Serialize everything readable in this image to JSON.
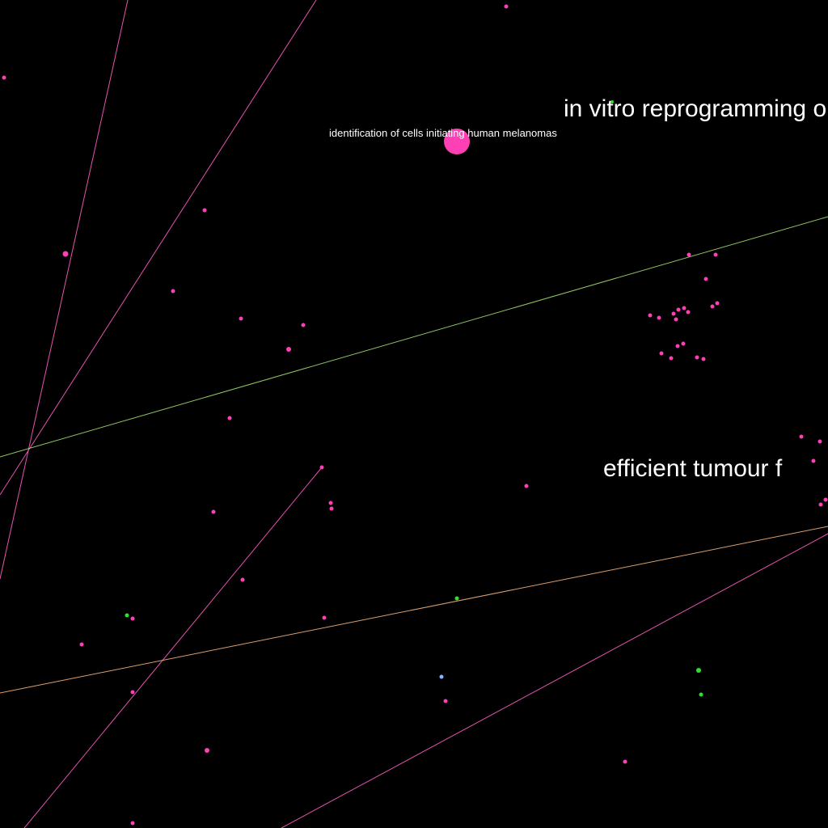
{
  "graph": {
    "background_color": "#000000",
    "labels": {
      "melanoma": "identification of cells initiating human melanomas",
      "reprogramming": "in vitro reprogramming o",
      "tumour": "efficient tumour f"
    },
    "colors": {
      "node_primary": "#ff3fb4",
      "node_secondary": "#2ee02e",
      "node_tertiary": "#8ab0ff",
      "edge_pink": "#ff5cc3",
      "edge_green": "#9fdc6a",
      "edge_orange": "#f4b07a",
      "label": "#ffffff"
    }
  }
}
